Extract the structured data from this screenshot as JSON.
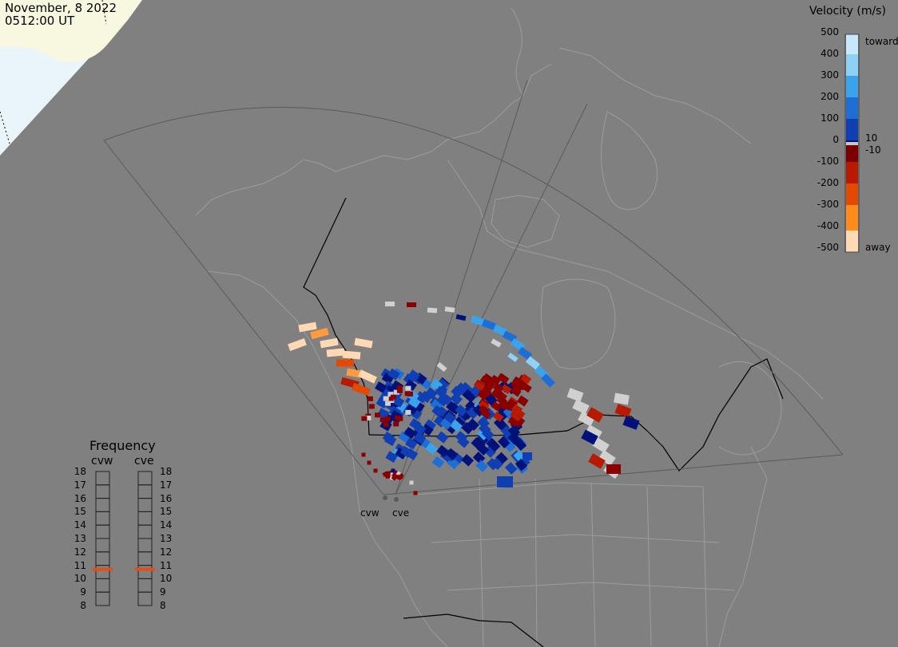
{
  "timestamp": {
    "date": "November, 8 2022",
    "time": "0512:00 UT"
  },
  "colorbar": {
    "title": "Velocity (m/s)",
    "ticks": [
      "500",
      "400",
      "300",
      "200",
      "100",
      "0",
      "-100",
      "-200",
      "-300",
      "-400",
      "-500"
    ],
    "toward_label": "toward",
    "away_label": "away",
    "pos_threshold": "10",
    "neg_threshold": "-10",
    "colors": [
      "#c6e8fa",
      "#8fd0f5",
      "#3aa3ec",
      "#1d6fd6",
      "#0f3fb3",
      "#00127a",
      "#c8c8c8",
      "#7a0000",
      "#b81a00",
      "#e34a00",
      "#ff8c1a",
      "#ffd9b3"
    ]
  },
  "frequency": {
    "title": "Frequency",
    "radars": [
      {
        "name": "cvw",
        "value": 10.7
      },
      {
        "name": "cve",
        "value": 10.7
      }
    ],
    "scale": [
      "18",
      "17",
      "16",
      "15",
      "14",
      "13",
      "12",
      "11",
      "10",
      "9",
      "8"
    ],
    "marker_color": "#e0501a"
  },
  "sites": [
    "cvw",
    "cve"
  ]
}
